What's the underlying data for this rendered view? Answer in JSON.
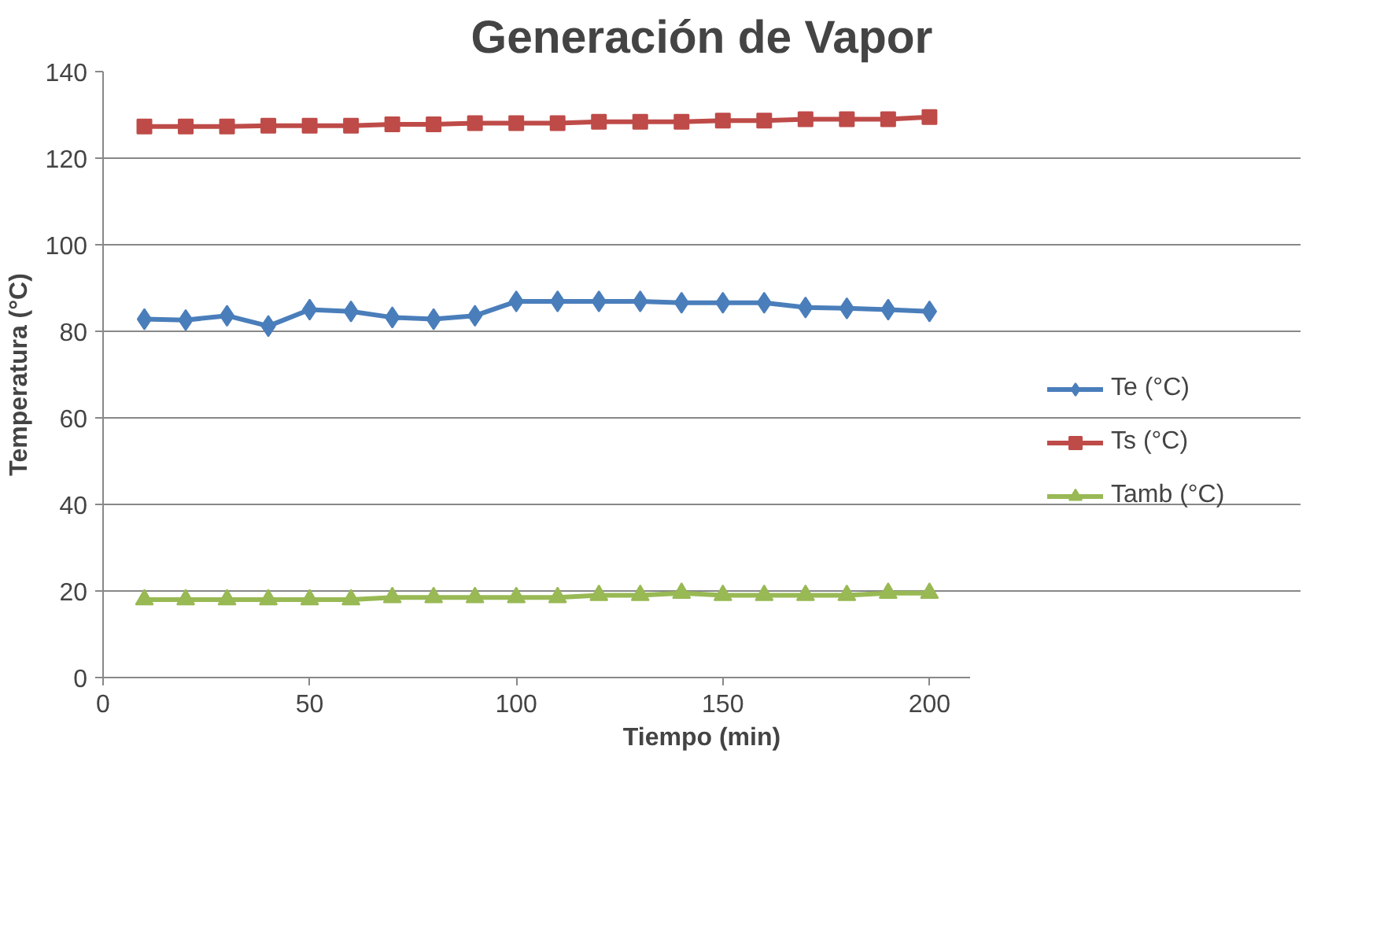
{
  "chart_data": {
    "type": "line",
    "title": "Generación de Vapor",
    "xlabel": "Tiempo (min)",
    "ylabel": "Temperatura (°C)",
    "x": [
      10,
      20,
      30,
      40,
      50,
      60,
      70,
      80,
      90,
      100,
      110,
      120,
      130,
      140,
      150,
      160,
      170,
      180,
      190,
      200
    ],
    "series": [
      {
        "name": "Te (°C)",
        "color": "#4a7ebb",
        "marker": "diamond",
        "values": [
          82.8,
          82.6,
          83.6,
          81.2,
          85.0,
          84.6,
          83.2,
          82.8,
          83.6,
          86.9,
          86.9,
          86.9,
          86.9,
          86.6,
          86.6,
          86.6,
          85.5,
          85.3,
          85.0,
          84.6
        ]
      },
      {
        "name": "Ts (°C)",
        "color": "#be4b48",
        "marker": "square",
        "values": [
          127.3,
          127.3,
          127.3,
          127.5,
          127.5,
          127.5,
          127.8,
          127.8,
          128.1,
          128.1,
          128.1,
          128.4,
          128.4,
          128.4,
          128.7,
          128.7,
          129.0,
          129.0,
          129.0,
          129.5
        ]
      },
      {
        "name": "Tamb (°C)",
        "color": "#98b954",
        "marker": "triangle",
        "values": [
          18.0,
          18.0,
          18.0,
          18.0,
          18.0,
          18.0,
          18.5,
          18.5,
          18.5,
          18.5,
          18.5,
          19.0,
          19.0,
          19.5,
          19.0,
          19.0,
          19.0,
          19.0,
          19.5,
          19.5
        ]
      }
    ],
    "xlim": [
      0,
      210
    ],
    "ylim": [
      0,
      140
    ],
    "xticks": [
      0,
      50,
      100,
      150,
      200
    ],
    "yticks": [
      0,
      20,
      40,
      60,
      80,
      100,
      120,
      140
    ],
    "grid": "y",
    "legend": "right"
  }
}
